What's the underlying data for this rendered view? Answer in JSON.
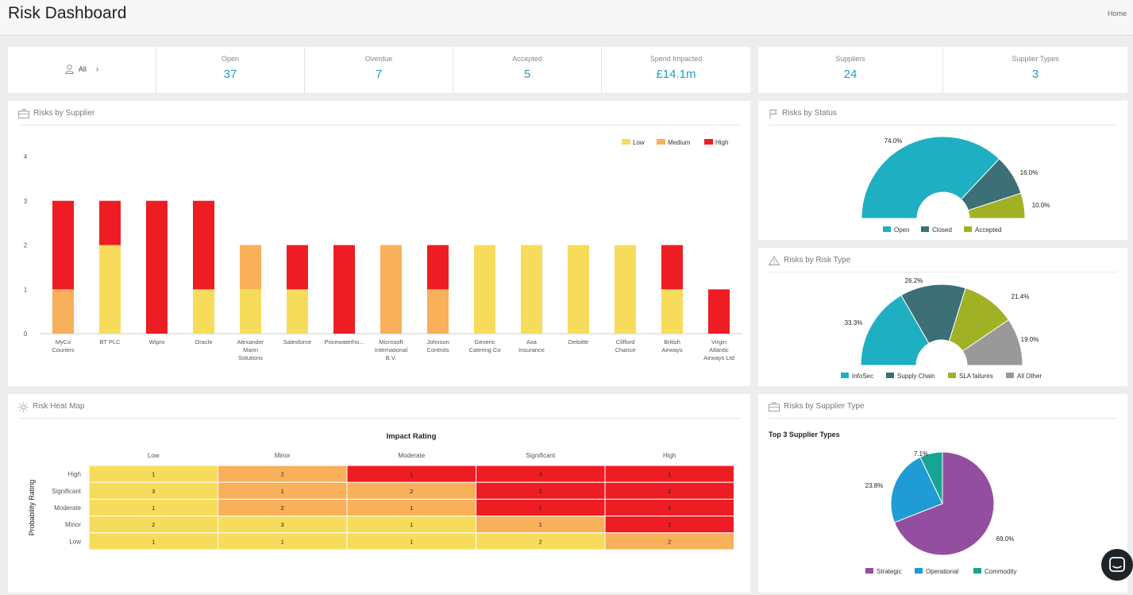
{
  "header": {
    "title": "Risk Dashboard",
    "home_link": "Home"
  },
  "kpis": {
    "filter_label": "All",
    "open": {
      "label": "Open",
      "value": "37"
    },
    "overdue": {
      "label": "Overdue",
      "value": "7"
    },
    "accepted": {
      "label": "Accepted",
      "value": "5"
    },
    "spend": {
      "label": "Spend Impacted",
      "value": "£14.1m"
    },
    "suppliers": {
      "label": "Suppliers",
      "value": "24"
    },
    "supplier_types": {
      "label": "Supplier Types",
      "value": "3"
    }
  },
  "panels": {
    "by_supplier": "Risks by Supplier",
    "by_status": "Risks by Status",
    "by_risk_type": "Risks by Risk Type",
    "heat_map": "Risk Heat Map",
    "by_supplier_type": "Risks by Supplier Type"
  },
  "colors": {
    "low": "#f7dc5c",
    "medium": "#f8b05a",
    "high": "#ee1d23",
    "open": "#1fafc3",
    "closed": "#3c6f76",
    "accepted": "#a0b125",
    "infosec": "#1fafc3",
    "supply_chain": "#3c6f76",
    "sla_failures": "#a0b125",
    "all_other": "#999999",
    "strategic": "#944ea0",
    "operational": "#1f9bd6",
    "commodity": "#17a493"
  },
  "chart_data": [
    {
      "id": "by_supplier",
      "type": "bar",
      "stacked": true,
      "categories": [
        [
          "MyCo",
          "Couriers"
        ],
        [
          "BT PLC"
        ],
        [
          "Wipro"
        ],
        [
          "Oracle"
        ],
        [
          "Alexander",
          "Mann",
          "Solutions"
        ],
        [
          "Salesforce"
        ],
        [
          "Pricewaterho..."
        ],
        [
          "Microsoft",
          "International",
          "B.V."
        ],
        [
          "Johnson",
          "Controls"
        ],
        [
          "Generic",
          "Catering Co"
        ],
        [
          "Axa",
          "Insurance"
        ],
        [
          "Deloitte"
        ],
        [
          "Clifford",
          "Chance"
        ],
        [
          "British",
          "Airways"
        ],
        [
          "Virgin",
          "Atlantic",
          "Airways Ltd"
        ]
      ],
      "series": [
        {
          "name": "Low",
          "color": "#f7dc5c",
          "values": [
            0,
            2,
            0,
            1,
            1,
            1,
            0,
            0,
            0,
            2,
            2,
            2,
            2,
            1,
            0
          ]
        },
        {
          "name": "Medium",
          "color": "#f8b05a",
          "values": [
            1,
            0,
            0,
            0,
            1,
            0,
            0,
            2,
            1,
            0,
            0,
            0,
            0,
            0,
            0
          ]
        },
        {
          "name": "High",
          "color": "#ee1d23",
          "values": [
            2,
            1,
            3,
            2,
            0,
            1,
            2,
            0,
            1,
            0,
            0,
            0,
            0,
            1,
            1
          ]
        }
      ],
      "ylim": [
        0,
        4
      ],
      "yticks": [
        0,
        1,
        2,
        3,
        4
      ],
      "legend": "top-right",
      "grid": false
    },
    {
      "id": "by_status",
      "type": "pie",
      "donut": "half",
      "slices": [
        {
          "name": "Open",
          "value": 74.0,
          "label": "74.0%",
          "color": "#1fafc3"
        },
        {
          "name": "Closed",
          "value": 16.0,
          "label": "16.0%",
          "color": "#3c6f76"
        },
        {
          "name": "Accepted",
          "value": 10.0,
          "label": "10.0%",
          "color": "#a0b125"
        }
      ],
      "legend": "bottom"
    },
    {
      "id": "by_risk_type",
      "type": "pie",
      "donut": "half",
      "slices": [
        {
          "name": "InfoSec",
          "value": 33.3,
          "label": "33.3%",
          "color": "#1fafc3"
        },
        {
          "name": "Supply Chain",
          "value": 26.2,
          "label": "26.2%",
          "color": "#3c6f76"
        },
        {
          "name": "SLA failures",
          "value": 21.4,
          "label": "21.4%",
          "color": "#a0b125"
        },
        {
          "name": "All Other",
          "value": 19.0,
          "label": "19.0%",
          "color": "#999999"
        }
      ],
      "legend": "bottom"
    },
    {
      "id": "heat_map",
      "type": "heatmap",
      "title": "Impact Rating",
      "ylabel": "Probability Rating",
      "columns": [
        "Low",
        "Minor",
        "Moderate",
        "Significant",
        "High"
      ],
      "rows": [
        "High",
        "Significant",
        "Moderate",
        "Minor",
        "Low"
      ],
      "values": [
        [
          1,
          2,
          1,
          3,
          1
        ],
        [
          3,
          1,
          2,
          2,
          2
        ],
        [
          1,
          2,
          1,
          1,
          4
        ],
        [
          2,
          3,
          1,
          1,
          1
        ],
        [
          1,
          1,
          1,
          2,
          2
        ]
      ],
      "levels": [
        [
          "low",
          "medium",
          "high",
          "high",
          "high"
        ],
        [
          "low",
          "medium",
          "medium",
          "high",
          "high"
        ],
        [
          "low",
          "medium",
          "medium",
          "high",
          "high"
        ],
        [
          "low",
          "low",
          "low",
          "medium",
          "high"
        ],
        [
          "low",
          "low",
          "low",
          "low",
          "medium"
        ]
      ]
    },
    {
      "id": "by_supplier_type",
      "type": "pie",
      "title": "Top 3 Supplier Types",
      "slices": [
        {
          "name": "Strategic",
          "value": 69.0,
          "label": "69.0%",
          "color": "#944ea0"
        },
        {
          "name": "Operational",
          "value": 23.8,
          "label": "23.8%",
          "color": "#1f9bd6"
        },
        {
          "name": "Commodity",
          "value": 7.1,
          "label": "7.1%",
          "color": "#17a493"
        }
      ],
      "legend": "bottom"
    }
  ]
}
